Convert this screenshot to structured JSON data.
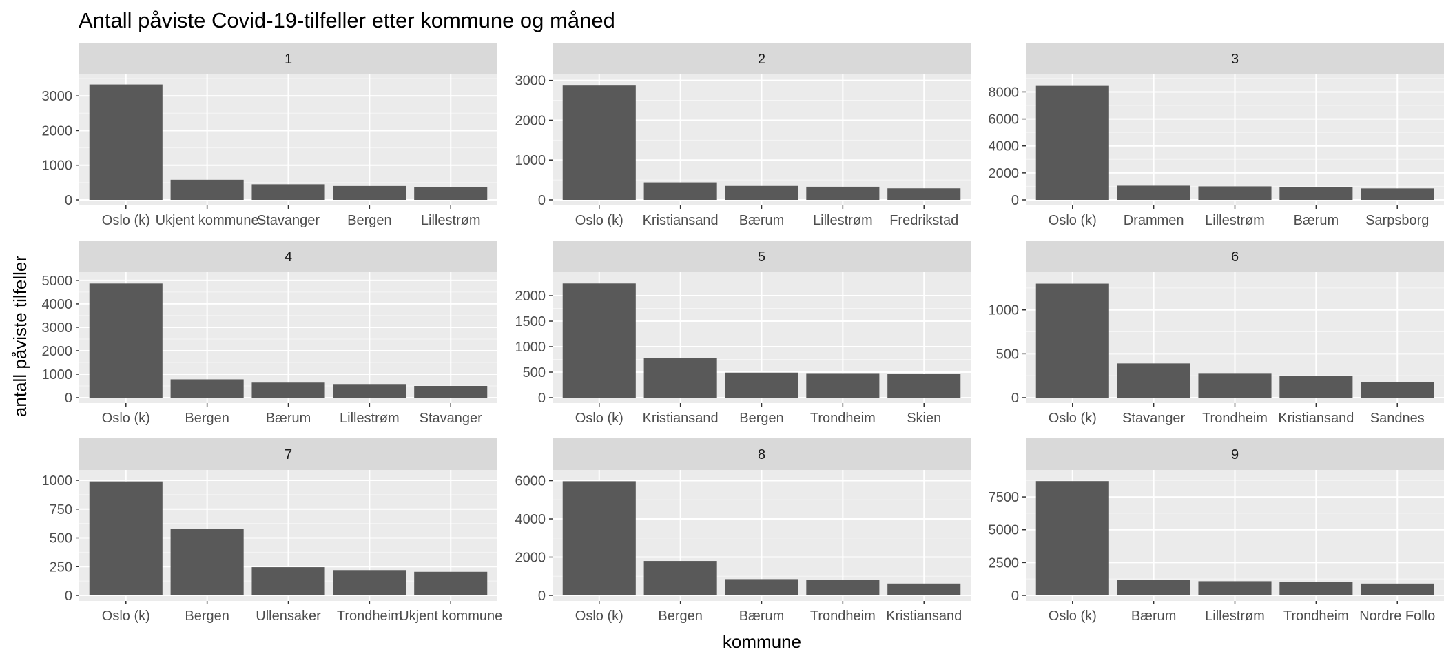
{
  "chart_data": {
    "type": "bar",
    "title": "Antall påviste Covid-19-tilfeller etter kommune og måned",
    "xlabel": "kommune",
    "ylabel": "antall påviste tilfeller",
    "facet_layout": "3x3",
    "grid": true,
    "legend": "none",
    "colors": {
      "bar": "#595959",
      "panel_background": "#ebebeb",
      "strip_background": "#d9d9d9",
      "grid_line": "#ffffff",
      "tick_text": "#4d4d4d"
    },
    "panels": [
      {
        "strip": "1",
        "categories": [
          "Oslo (k)",
          "Ukjent kommune",
          "Stavanger",
          "Bergen",
          "Lillestrøm"
        ],
        "values": [
          3330,
          580,
          450,
          400,
          370
        ],
        "ylim": [
          0,
          3620
        ],
        "yticks": [
          0,
          1000,
          2000,
          3000
        ]
      },
      {
        "strip": "2",
        "categories": [
          "Oslo (k)",
          "Kristiansand",
          "Bærum",
          "Lillestrøm",
          "Fredrikstad"
        ],
        "values": [
          2870,
          440,
          350,
          330,
          290
        ],
        "ylim": [
          0,
          3150
        ],
        "yticks": [
          0,
          1000,
          2000,
          3000
        ]
      },
      {
        "strip": "3",
        "categories": [
          "Oslo (k)",
          "Drammen",
          "Lillestrøm",
          "Bærum",
          "Sarpsborg"
        ],
        "values": [
          8450,
          1050,
          1000,
          920,
          850
        ],
        "ylim": [
          0,
          9300
        ],
        "yticks": [
          0,
          2000,
          4000,
          6000,
          8000
        ]
      },
      {
        "strip": "4",
        "categories": [
          "Oslo (k)",
          "Bergen",
          "Bærum",
          "Lillestrøm",
          "Stavanger"
        ],
        "values": [
          4870,
          780,
          640,
          580,
          500
        ],
        "ylim": [
          0,
          5350
        ],
        "yticks": [
          0,
          1000,
          2000,
          3000,
          4000,
          5000
        ]
      },
      {
        "strip": "5",
        "categories": [
          "Oslo (k)",
          "Kristiansand",
          "Bergen",
          "Trondheim",
          "Skien"
        ],
        "values": [
          2240,
          780,
          490,
          480,
          460
        ],
        "ylim": [
          0,
          2460
        ],
        "yticks": [
          0,
          500,
          1000,
          1500,
          2000
        ]
      },
      {
        "strip": "6",
        "categories": [
          "Oslo (k)",
          "Stavanger",
          "Trondheim",
          "Kristiansand",
          "Sandnes"
        ],
        "values": [
          1300,
          390,
          280,
          250,
          180
        ],
        "ylim": [
          0,
          1430
        ],
        "yticks": [
          0,
          500,
          1000
        ]
      },
      {
        "strip": "7",
        "categories": [
          "Oslo (k)",
          "Bergen",
          "Ullensaker",
          "Trondheim",
          "Ukjent kommune"
        ],
        "values": [
          990,
          575,
          245,
          220,
          205
        ],
        "ylim": [
          0,
          1090
        ],
        "yticks": [
          0,
          250,
          500,
          750,
          1000
        ]
      },
      {
        "strip": "8",
        "categories": [
          "Oslo (k)",
          "Bergen",
          "Bærum",
          "Trondheim",
          "Kristiansand"
        ],
        "values": [
          5970,
          1800,
          850,
          800,
          620
        ],
        "ylim": [
          0,
          6560
        ],
        "yticks": [
          0,
          2000,
          4000,
          6000
        ]
      },
      {
        "strip": "9",
        "categories": [
          "Oslo (k)",
          "Bærum",
          "Lillestrøm",
          "Trondheim",
          "Nordre Follo"
        ],
        "values": [
          8700,
          1200,
          1080,
          1000,
          900
        ],
        "ylim": [
          0,
          9550
        ],
        "yticks": [
          0,
          2500,
          5000,
          7500
        ]
      }
    ]
  }
}
